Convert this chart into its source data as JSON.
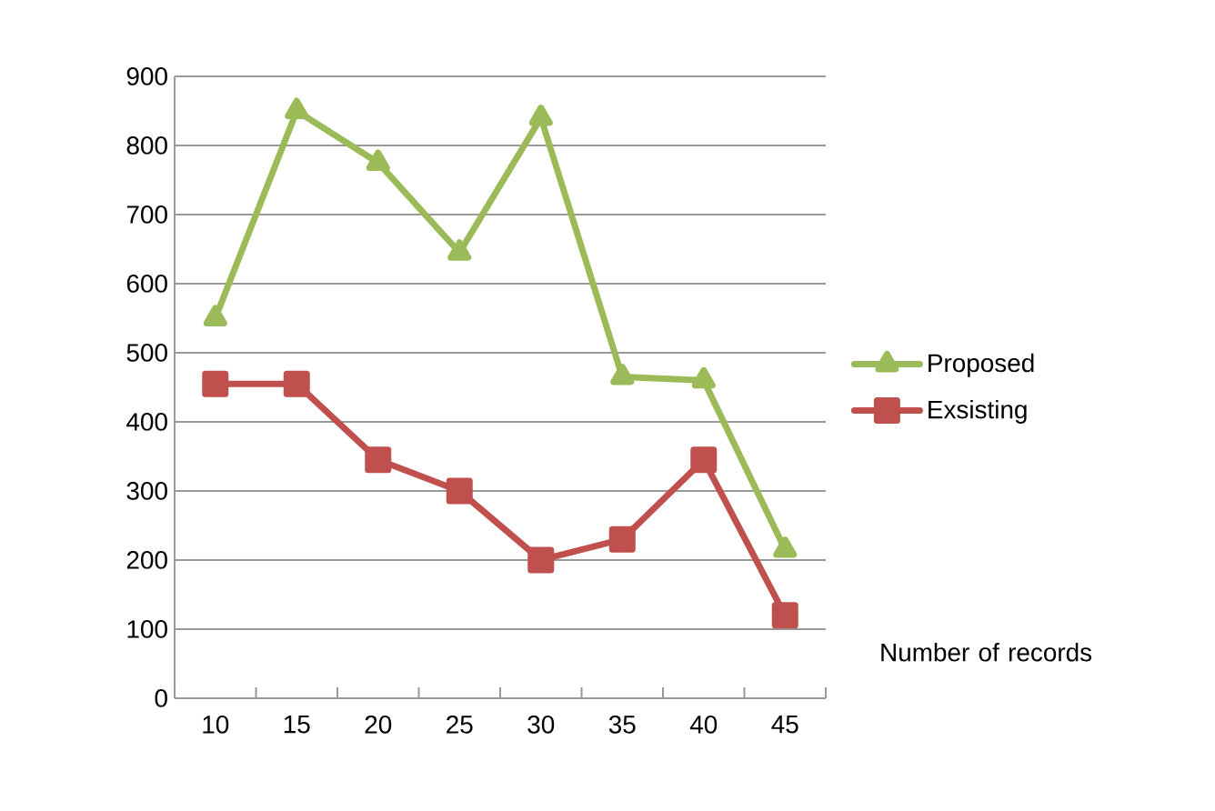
{
  "chart_data": {
    "type": "line",
    "categories": [
      "10",
      "15",
      "20",
      "25",
      "30",
      "35",
      "40",
      "45"
    ],
    "xlabel": "Number of records",
    "ylim": [
      0,
      900
    ],
    "yticks": [
      0,
      100,
      200,
      300,
      400,
      500,
      600,
      700,
      800,
      900
    ],
    "grid": "y",
    "legend": "right",
    "line_style": "solid",
    "series": [
      {
        "name": "Proposed",
        "color": "#9bbb59",
        "marker": "triangle",
        "values": [
          550,
          850,
          775,
          645,
          840,
          465,
          460,
          215
        ]
      },
      {
        "name": "Exsisting",
        "color": "#c0504d",
        "marker": "square",
        "values": [
          455,
          455,
          345,
          300,
          200,
          230,
          345,
          120
        ]
      }
    ]
  }
}
